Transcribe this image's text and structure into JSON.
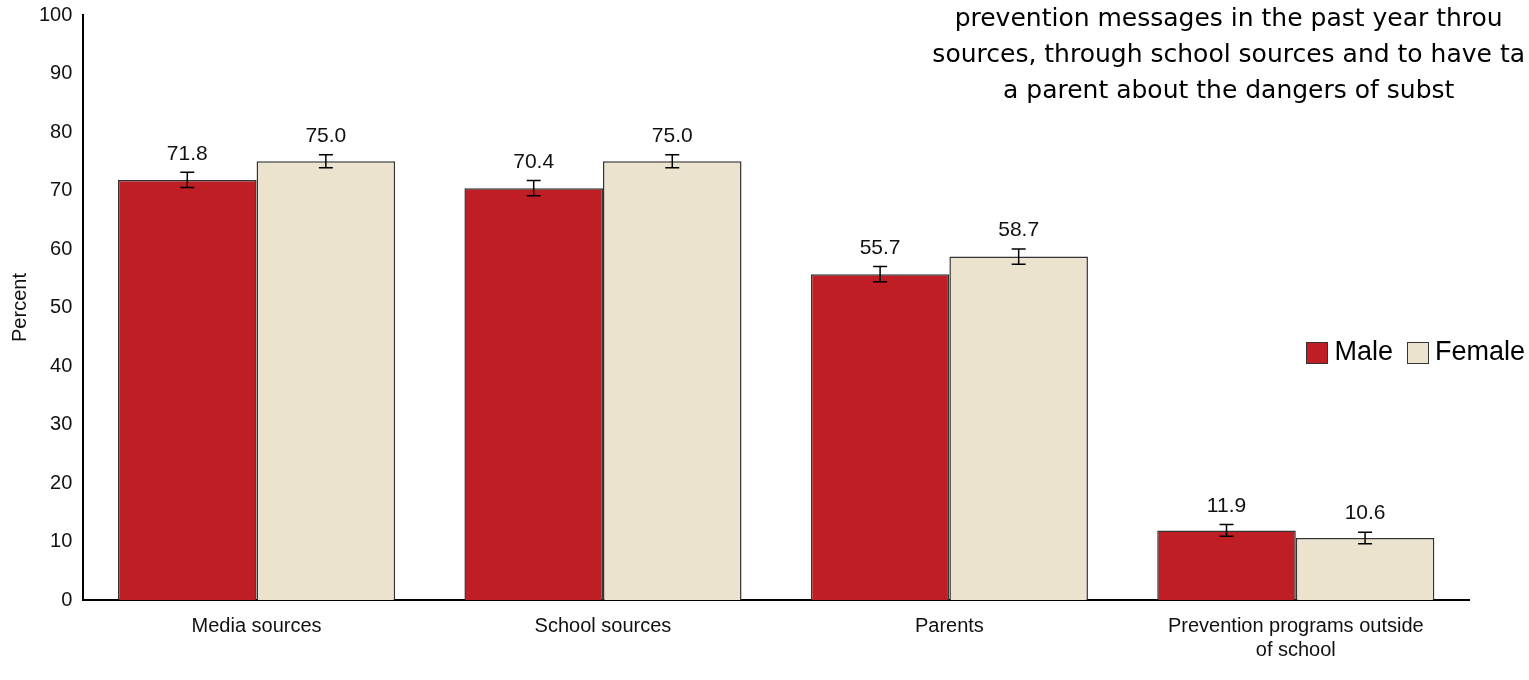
{
  "chart_data": {
    "type": "bar",
    "ylabel": "Percent",
    "categories": [
      "Media sources",
      "School sources",
      "Parents",
      "Prevention programs outside of school"
    ],
    "series": [
      {
        "name": "Male",
        "color": "#be1e24",
        "values": [
          71.8,
          70.4,
          55.7,
          11.9
        ],
        "errors": [
          1.3,
          1.3,
          1.3,
          1.0
        ],
        "value_labels": [
          "71.8",
          "70.4",
          "55.7",
          "11.9"
        ]
      },
      {
        "name": "Female",
        "color": "#ece3cf",
        "values": [
          75.0,
          75.0,
          58.7,
          10.6
        ],
        "errors": [
          1.1,
          1.1,
          1.3,
          1.0
        ],
        "value_labels": [
          "75.0",
          "75.0",
          "58.7",
          "10.6"
        ]
      }
    ],
    "ylim": [
      0,
      100
    ],
    "yticks": [
      0,
      10,
      20,
      30,
      40,
      50,
      60,
      70,
      80,
      90,
      100
    ],
    "grid": false,
    "legend": "right",
    "annotations": [
      "prevention messages in the past year throu",
      "sources, through school sources and to have ta",
      "a parent about the dangers of subst"
    ]
  }
}
